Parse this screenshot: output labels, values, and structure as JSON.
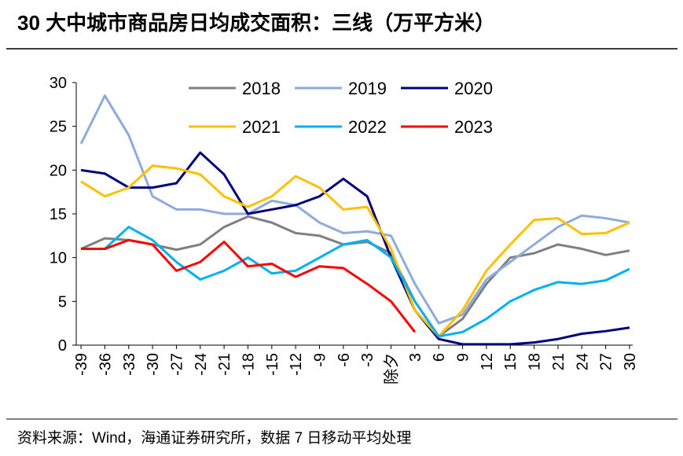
{
  "chart_data": {
    "type": "line",
    "title": "30 大中城市商品房日均成交面积：三线（万平方米）",
    "source": "资料来源：Wind，海通证券研究所，数据 7 日移动平均处理",
    "x": [
      -39,
      -36,
      -33,
      -30,
      -27,
      -24,
      -21,
      -18,
      -15,
      -12,
      -9,
      -6,
      -3,
      0,
      3,
      6,
      9,
      12,
      15,
      18,
      21,
      24,
      27,
      30
    ],
    "xlim": [
      -39.6,
      30.4
    ],
    "xticks": [
      -39,
      -36,
      -33,
      -30,
      -27,
      -24,
      -21,
      -18,
      -15,
      -12,
      -9,
      -6,
      -3,
      {
        "value": 0,
        "label": "除夕"
      },
      3,
      6,
      9,
      12,
      15,
      18,
      21,
      24,
      27,
      30
    ],
    "ylim": [
      0,
      30
    ],
    "yticks": [
      0,
      5,
      10,
      15,
      20,
      25,
      30
    ],
    "legend": "top",
    "series": [
      {
        "name": "2018",
        "color": "#808080",
        "values": [
          11,
          12.2,
          12,
          11.5,
          10.9,
          11.5,
          13.5,
          14.7,
          14,
          12.8,
          12.5,
          11.5,
          11.8,
          10.5,
          5,
          1,
          3,
          7,
          10,
          10.5,
          11.5,
          11,
          10.3,
          10.8
        ]
      },
      {
        "name": "2019",
        "color": "#8faadc",
        "values": [
          23,
          28.5,
          24,
          17,
          15.5,
          15.5,
          15,
          15,
          16.5,
          16,
          14,
          12.8,
          13,
          12.5,
          7,
          2.5,
          3.5,
          7.5,
          9.5,
          11.5,
          13.5,
          14.8,
          14.5,
          14
        ]
      },
      {
        "name": "2020",
        "color": "#00007f",
        "values": [
          20,
          19.6,
          18,
          18,
          18.5,
          22,
          19.5,
          15,
          15.5,
          16,
          17,
          19,
          17,
          10,
          4,
          0.7,
          0.1,
          0.1,
          0.1,
          0.3,
          0.7,
          1.3,
          1.6,
          2
        ]
      },
      {
        "name": "2021",
        "color": "#ffc000",
        "values": [
          18.7,
          17,
          18,
          20.5,
          20.2,
          19.5,
          17,
          15.8,
          17,
          19.3,
          18,
          15.5,
          15.8,
          11,
          4,
          1,
          4,
          8.5,
          11.5,
          14.3,
          14.5,
          12.7,
          12.8,
          14
        ]
      },
      {
        "name": "2022",
        "color": "#00b0f0",
        "values": [
          11,
          11,
          13.5,
          12,
          9.5,
          7.5,
          8.5,
          10,
          8.2,
          8.5,
          10,
          11.5,
          12,
          10,
          5,
          1,
          1.5,
          3,
          5,
          6.3,
          7.2,
          7,
          7.4,
          8.7
        ]
      },
      {
        "name": "2023",
        "color": "#ff0000",
        "values": [
          11,
          11,
          12,
          11.5,
          8.5,
          9.5,
          11.8,
          9,
          9.3,
          7.8,
          9,
          8.8,
          7,
          5,
          1.5,
          null,
          null,
          null,
          null,
          null,
          null,
          null,
          null,
          null
        ]
      }
    ]
  }
}
